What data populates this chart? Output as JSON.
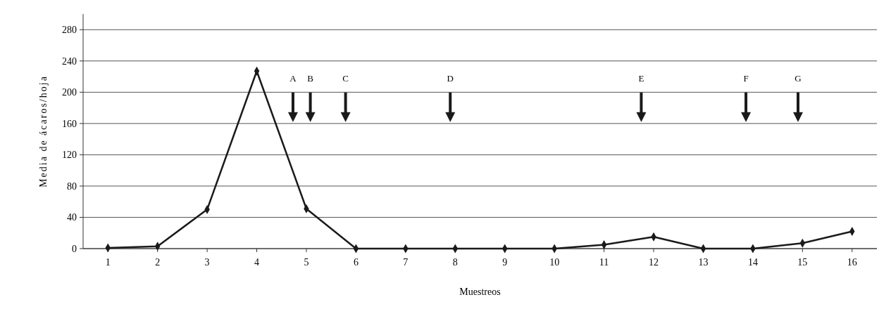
{
  "chart_data": {
    "type": "line",
    "xlabel": "Muestreos",
    "ylabel": "Media de ácaros/hoja",
    "x": [
      1,
      2,
      3,
      4,
      5,
      6,
      7,
      8,
      9,
      10,
      11,
      12,
      13,
      14,
      15,
      16
    ],
    "series": [
      {
        "color": "#1a1a1a",
        "values": [
          1,
          3,
          50,
          227,
          51,
          0,
          0,
          0,
          0,
          0,
          5,
          15,
          0,
          0,
          7,
          22
        ]
      }
    ],
    "xlim": [
      0.5,
      16.5
    ],
    "xticks": [
      1,
      2,
      3,
      4,
      5,
      6,
      7,
      8,
      9,
      10,
      11,
      12,
      13,
      14,
      15,
      16
    ],
    "ylim": [
      0,
      300
    ],
    "yticks": [
      0,
      40,
      80,
      120,
      160,
      200,
      240,
      280
    ],
    "grid": "y",
    "marker": "diamond",
    "line_style": "solid",
    "ref_lines": [
      {
        "axis": "x",
        "value": 4.73,
        "label": "A"
      },
      {
        "axis": "x",
        "value": 5.08,
        "label": "B"
      },
      {
        "axis": "x",
        "value": 5.79,
        "label": "C"
      },
      {
        "axis": "x",
        "value": 7.9,
        "label": "D"
      },
      {
        "axis": "x",
        "value": 11.75,
        "label": "E"
      },
      {
        "axis": "x",
        "value": 13.86,
        "label": "F"
      },
      {
        "axis": "x",
        "value": 14.91,
        "label": "G"
      }
    ]
  }
}
